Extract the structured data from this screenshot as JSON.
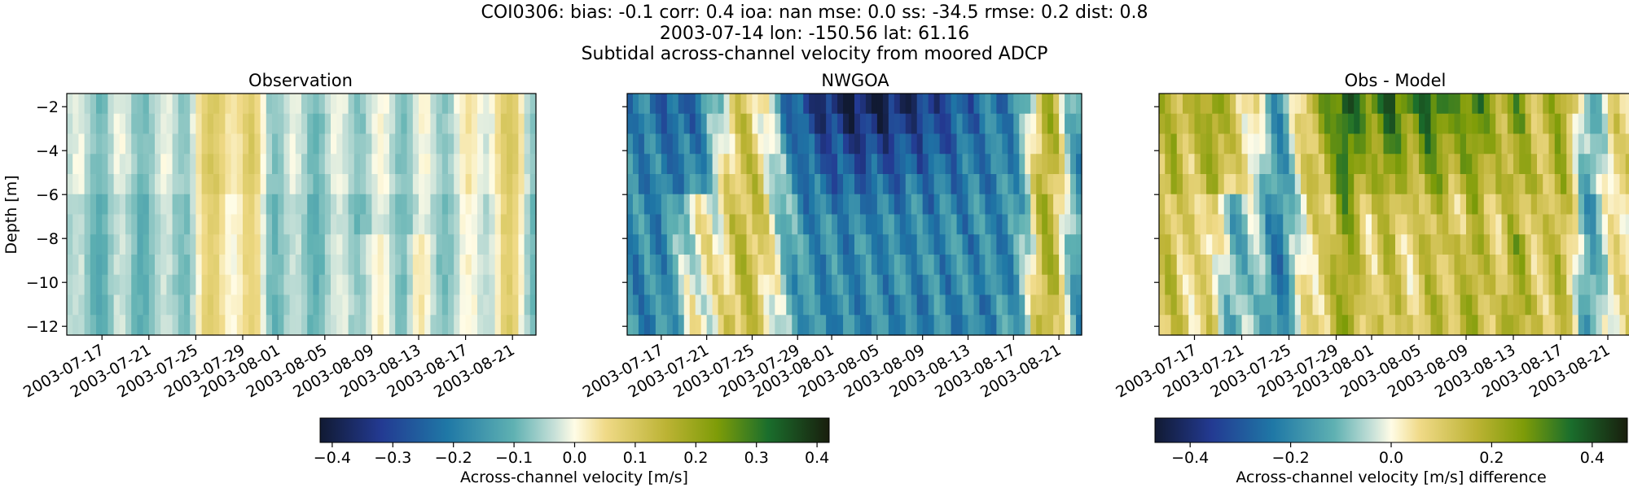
{
  "title_lines": [
    "COI0306: bias: -0.1  corr: 0.4  ioa: nan  mse: 0.0  ss: -34.5  rmse: 0.2  dist: 0.8",
    "2003-07-14 lon: -150.56 lat: 61.16",
    "Subtidal across-channel velocity from moored ADCP"
  ],
  "chart_data": [
    {
      "type": "heatmap",
      "title": "Observation",
      "ylabel": "Depth [m]",
      "xlabel": "",
      "x_ticks": [
        "2003-07-17",
        "2003-07-21",
        "2003-07-25",
        "2003-07-29",
        "2003-08-01",
        "2003-08-05",
        "2003-08-09",
        "2003-08-13",
        "2003-08-17",
        "2003-08-21"
      ],
      "y_ticks": [
        -2,
        -4,
        -6,
        -8,
        -10,
        -12
      ],
      "xlim": [
        "2003-07-14",
        "2003-08-23"
      ],
      "ylim": [
        -12.4,
        -1.4
      ],
      "colorbar": {
        "label": "Across-channel velocity [m/s]",
        "vmin": -0.42,
        "vmax": 0.42,
        "ticks": [
          -0.4,
          -0.3,
          -0.2,
          -0.1,
          0.0,
          0.1,
          0.2,
          0.3,
          0.4
        ]
      },
      "values_description": "weak velocities: mostly -0.1 to -0.02 m/s, positive bands (~0.05–0.12) near Jul 25–29, Aug 13 and Aug 20–21"
    },
    {
      "type": "heatmap",
      "title": "NWGOA",
      "ylabel": "",
      "x_ticks": [
        "2003-07-17",
        "2003-07-21",
        "2003-07-25",
        "2003-07-29",
        "2003-08-01",
        "2003-08-05",
        "2003-08-09",
        "2003-08-13",
        "2003-08-17",
        "2003-08-21"
      ],
      "y_ticks": [
        -2,
        -4,
        -6,
        -8,
        -10,
        -12
      ],
      "xlim": [
        "2003-07-14",
        "2003-08-23"
      ],
      "ylim": [
        -12.4,
        -1.4
      ],
      "colorbar": {
        "label": "Across-channel velocity [m/s]",
        "vmin": -0.42,
        "vmax": 0.42
      },
      "values_description": "strong negative flow (-0.2 to -0.42) near surface Jul 29–Aug 17, positive (~0.1–0.15) Jul 21–27 and Aug 19–21"
    },
    {
      "type": "heatmap",
      "title": "Obs - Model",
      "ylabel": "",
      "x_ticks": [
        "2003-07-17",
        "2003-07-21",
        "2003-07-25",
        "2003-07-29",
        "2003-08-01",
        "2003-08-05",
        "2003-08-09",
        "2003-08-13",
        "2003-08-17",
        "2003-08-21"
      ],
      "y_ticks": [
        -2,
        -4,
        -6,
        -8,
        -10,
        -12
      ],
      "xlim": [
        "2003-07-14",
        "2003-08-23"
      ],
      "ylim": [
        -12.4,
        -1.4
      ],
      "colorbar": {
        "label": "Across-channel velocity [m/s] difference",
        "vmin": -0.47,
        "vmax": 0.47,
        "ticks": [
          -0.4,
          -0.2,
          0.0,
          0.2,
          0.4
        ]
      },
      "values_description": "positive differences (0.1–0.45) dominate, largest near surface Jul 29–Aug 17"
    }
  ]
}
